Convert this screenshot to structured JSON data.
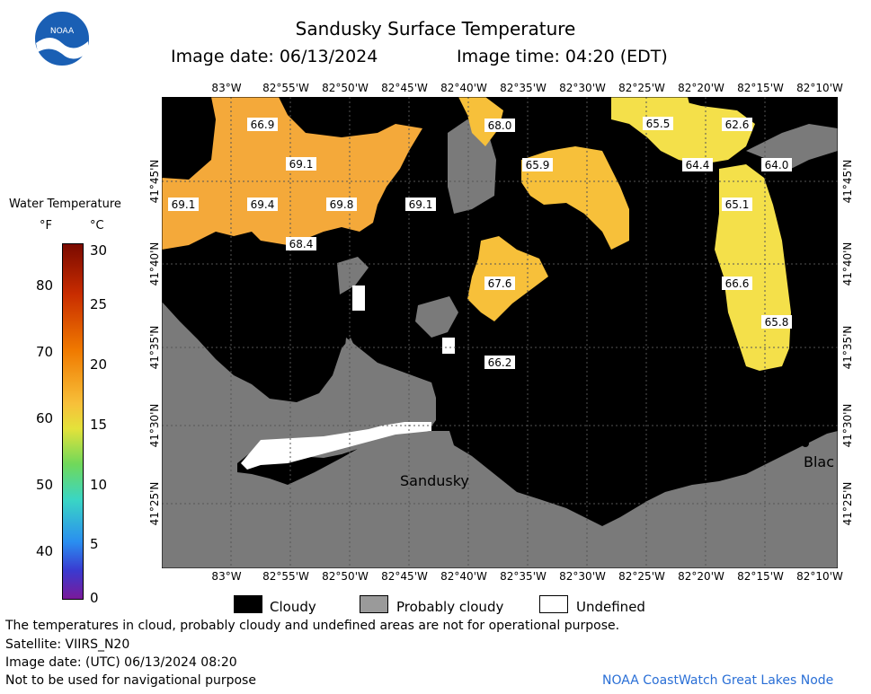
{
  "header": {
    "title": "Sandusky Surface Temperature",
    "image_date": "Image date: 06/13/2024",
    "image_time": "Image time: 04:20 (EDT)"
  },
  "map": {
    "lon_labels": [
      "83°W",
      "82°55'W",
      "82°50'W",
      "82°45'W",
      "82°40'W",
      "82°35'W",
      "82°30'W",
      "82°25'W",
      "82°20'W",
      "82°15'W",
      "82°10'W"
    ],
    "lat_labels": [
      "41°45'N",
      "41°40'N",
      "41°35'N",
      "41°30'N",
      "41°25'N"
    ],
    "places": {
      "sandusky": "Sandusky",
      "bla": "Blac"
    },
    "temps": [
      "66.9",
      "68.0",
      "65.5",
      "62.6",
      "69.1",
      "65.9",
      "64.4",
      "64.0",
      "69.1",
      "69.4",
      "69.8",
      "69.1",
      "65.1",
      "68.4",
      "67.6",
      "66.6",
      "65.8",
      "66.2"
    ]
  },
  "colorbar": {
    "title": "Water Temperature",
    "unit_f": "°F",
    "unit_c": "°C",
    "f_ticks": [
      "80",
      "70",
      "60",
      "50",
      "40"
    ],
    "c_ticks": [
      "30",
      "25",
      "20",
      "15",
      "10",
      "5",
      "0"
    ]
  },
  "legend": {
    "cloudy": "Cloudy",
    "probably_cloudy": "Probably cloudy",
    "undefined": "Undefined"
  },
  "footer": {
    "note": "The temperatures in cloud, probably cloudy and undefined areas are not for operational purpose.",
    "satellite": "Satellite: VIIRS_N20",
    "utc": "Image date: (UTC) 06/13/2024  08:20",
    "nav": "Not to be used for navigational purpose",
    "credit": "NOAA CoastWatch Great Lakes Node"
  },
  "logo": {
    "text": "NOAA"
  },
  "colors": {
    "cloudy": "#000000",
    "probably_cloudy": "#7a7a7a",
    "land": "#7a7a7a",
    "warm": "#f4a93a",
    "mid": "#f7c03a",
    "cool": "#f4e04a"
  }
}
